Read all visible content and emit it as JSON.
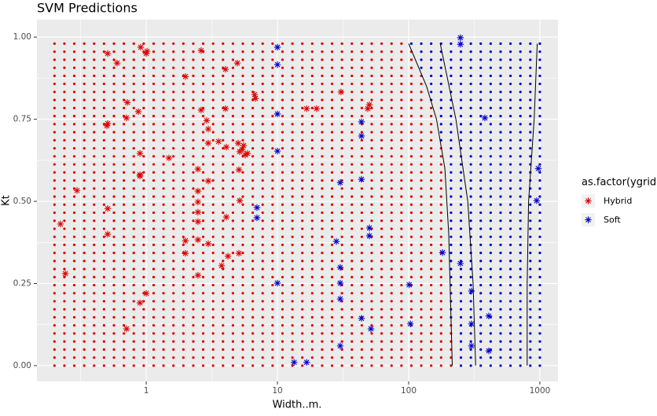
{
  "chart_data": {
    "type": "scatter",
    "title": "SVM Predictions",
    "x_label": "Width..m.",
    "y_label": "Kt",
    "legend_title": "as.factor(ygrid)",
    "log_x": true,
    "grid": true,
    "legend_position": "right",
    "xlim": [
      0.147,
      1374
    ],
    "ylim": [
      -0.048,
      1.053
    ],
    "xticks": [
      1,
      10,
      100,
      1000
    ],
    "yticks": [
      {
        "value": 0,
        "label": "0.00"
      },
      {
        "value": 0.25,
        "label": "0.25"
      },
      {
        "value": 0.5,
        "label": "0.50"
      },
      {
        "value": 0.75,
        "label": "0.75"
      },
      {
        "value": 1,
        "label": "1.00"
      }
    ],
    "x_minor": [
      0.316,
      3.16,
      31.6,
      316
    ],
    "y_minor": [
      0.125,
      0.375,
      0.625,
      0.875
    ],
    "grid_x": [
      0.2,
      0.238,
      0.283,
      0.337,
      0.401,
      0.477,
      0.568,
      0.676,
      0.804,
      0.957,
      1.139,
      1.355,
      1.613,
      1.919,
      2.284,
      2.718,
      3.234,
      3.849,
      4.58,
      5.45,
      6.486,
      7.718,
      9.185,
      10.93,
      13.01,
      15.48,
      18.42,
      21.92,
      26.08,
      31.04,
      36.94,
      43.95,
      52.3,
      62.24,
      74.07,
      88.14,
      104.9,
      124.8,
      148.5,
      176.7,
      210.3,
      250.3,
      297.8,
      354.4,
      421.7,
      501.9,
      597.2,
      710.7,
      845.7,
      1000
    ],
    "grid_y": [
      0,
      0.0245,
      0.049,
      0.0735,
      0.098,
      0.1225,
      0.147,
      0.1715,
      0.196,
      0.2205,
      0.245,
      0.2695,
      0.294,
      0.3185,
      0.343,
      0.3675,
      0.392,
      0.4165,
      0.441,
      0.4655,
      0.49,
      0.5145,
      0.539,
      0.5635,
      0.588,
      0.6125,
      0.637,
      0.6615,
      0.686,
      0.7105,
      0.735,
      0.7595,
      0.784,
      0.8085,
      0.833,
      0.8575,
      0.882,
      0.9065,
      0.931,
      0.9555,
      0.98
    ],
    "contours": [
      {
        "x": [
          100,
          137,
          163,
          189,
          202,
          215
        ],
        "y": [
          0.98,
          0.85,
          0.75,
          0.6,
          0.4,
          0
        ]
      },
      {
        "x": [
          174,
          229,
          282,
          310,
          324
        ],
        "y": [
          0.98,
          0.75,
          0.5,
          0.25,
          0
        ]
      },
      {
        "x": [
          955,
          905,
          820,
          800,
          800
        ],
        "y": [
          0.98,
          0.75,
          0.5,
          0.25,
          0
        ]
      }
    ],
    "series": [
      {
        "name": "Hybrid",
        "color": "#dd0000",
        "x": [
          0.222,
          0.242,
          0.297,
          0.509,
          0.6,
          0.718,
          0.708,
          0.509,
          0.502,
          0.509,
          0.509,
          0.871,
          0.908,
          1.0,
          1.014,
          0.896,
          0.896,
          0.896,
          0.896,
          1.0,
          0.708,
          1.49,
          1.99,
          1.99,
          1.99,
          2.48,
          2.48,
          2.48,
          2.48,
          2.48,
          2.48,
          2.48,
          2.62,
          2.62,
          2.89,
          2.97,
          2.97,
          2.97,
          2.97,
          3.56,
          3.76,
          4.02,
          4.02,
          4.08,
          4.08,
          4.2,
          4.95,
          5.02,
          5.16,
          5.09,
          5.16,
          5.09,
          5.38,
          5.53,
          5.68,
          5.92,
          6.7,
          6.8,
          16.7,
          19.9,
          30.5,
          50.2,
          48.8
        ],
        "y": [
          0.431,
          0.28,
          0.533,
          0.95,
          0.921,
          0.801,
          0.754,
          0.737,
          0.73,
          0.478,
          0.4,
          0.773,
          0.969,
          0.95,
          0.957,
          0.646,
          0.581,
          0.577,
          0.191,
          0.22,
          0.112,
          0.632,
          0.88,
          0.38,
          0.342,
          0.598,
          0.531,
          0.498,
          0.467,
          0.438,
          0.383,
          0.275,
          0.959,
          0.778,
          0.746,
          0.72,
          0.677,
          0.562,
          0.371,
          0.682,
          0.304,
          0.902,
          0.782,
          0.665,
          0.452,
          0.333,
          0.921,
          0.677,
          0.651,
          0.596,
          0.502,
          0.342,
          0.658,
          0.67,
          0.641,
          0.646,
          0.825,
          0.813,
          0.782,
          0.782,
          0.833,
          0.794,
          0.782
        ]
      },
      {
        "name": "Soft",
        "color": "#0000cc",
        "x": [
          10.0,
          10.0,
          10.0,
          10.0,
          10.0,
          6.98,
          6.98,
          13.4,
          16.7,
          28.1,
          30.1,
          30.1,
          30.1,
          30.1,
          30.1,
          43.7,
          43.7,
          43.7,
          43.7,
          50.2,
          50.2,
          51.6,
          101,
          103,
          181,
          248,
          248,
          248,
          301,
          301,
          301,
          381,
          408,
          408,
          973,
          946
        ],
        "y": [
          0.969,
          0.916,
          0.766,
          0.653,
          0.251,
          0.481,
          0.45,
          0.01,
          0.01,
          0.378,
          0.557,
          0.299,
          0.251,
          0.203,
          0.06,
          0.742,
          0.699,
          0.567,
          0.144,
          0.419,
          0.395,
          0.112,
          0.246,
          0.127,
          0.344,
          0.311,
          0.998,
          0.978,
          0.227,
          0.127,
          0.06,
          0.754,
          0.151,
          0.045,
          0.6,
          0.502
        ]
      }
    ]
  }
}
